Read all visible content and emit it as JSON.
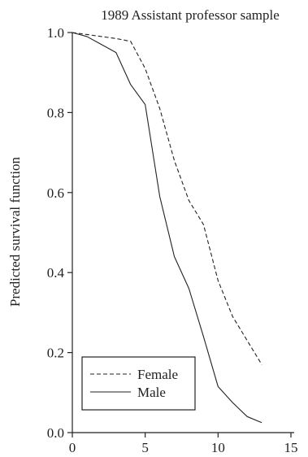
{
  "chart_data": {
    "type": "line",
    "title": "1989 Assistant professor sample",
    "xlabel": "",
    "ylabel": "Predicted survival function",
    "xlim": [
      0,
      15
    ],
    "ylim": [
      0.0,
      1.0
    ],
    "x_ticks": [
      "0",
      "5",
      "10",
      "15"
    ],
    "y_ticks": [
      "0.0",
      "0.2",
      "0.4",
      "0.6",
      "0.8",
      "1.0"
    ],
    "grid": false,
    "legend_position": "bottom-left",
    "series": [
      {
        "name": "Female",
        "style": "dashed",
        "color": "#222222",
        "x": [
          0,
          1,
          2,
          3,
          4,
          5,
          6,
          7,
          8,
          9,
          10,
          11,
          12,
          13
        ],
        "y": [
          1.0,
          0.995,
          0.99,
          0.985,
          0.978,
          0.91,
          0.81,
          0.68,
          0.58,
          0.52,
          0.38,
          0.29,
          0.23,
          0.17
        ]
      },
      {
        "name": "Male",
        "style": "solid",
        "color": "#222222",
        "x": [
          0,
          1,
          2,
          3,
          4,
          5,
          6,
          7,
          8,
          9,
          10,
          11,
          12,
          13
        ],
        "y": [
          1.0,
          0.99,
          0.97,
          0.95,
          0.87,
          0.82,
          0.59,
          0.44,
          0.36,
          0.24,
          0.115,
          0.075,
          0.04,
          0.025
        ]
      }
    ]
  }
}
